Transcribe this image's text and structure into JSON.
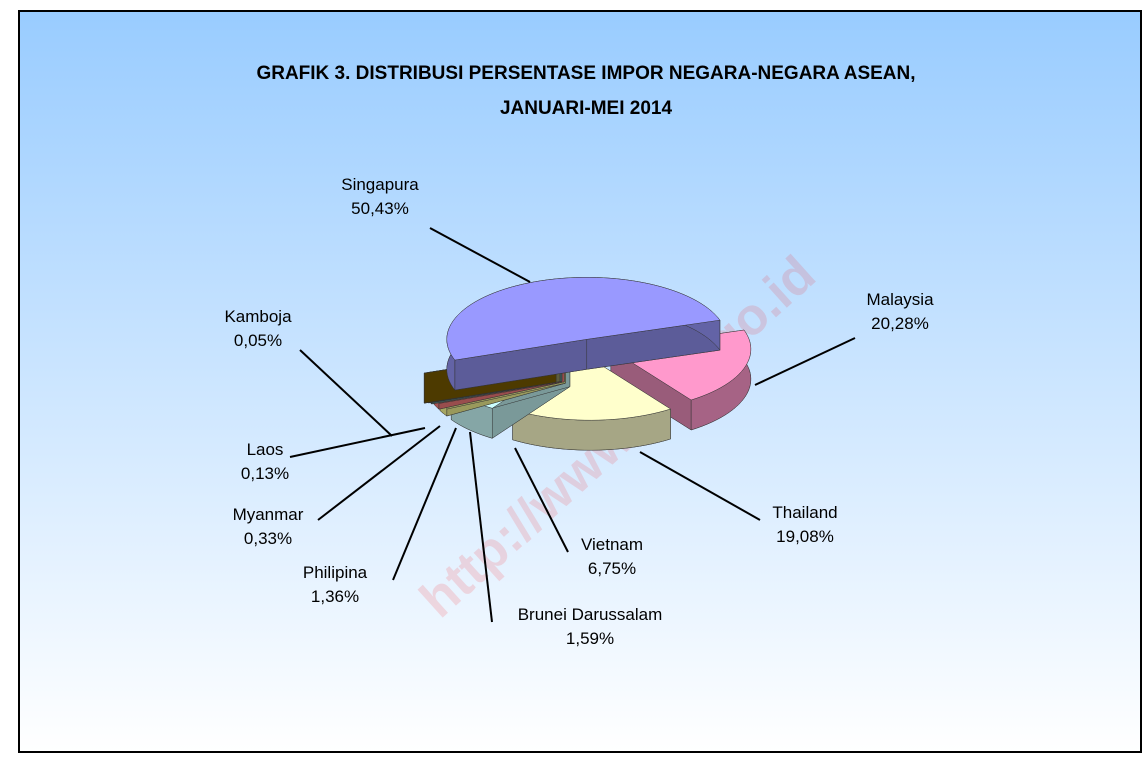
{
  "chart_data": {
    "type": "pie",
    "title": [
      "GRAFIK 3. DISTRIBUSI PERSENTASE IMPOR NEGARA-NEGARA ASEAN,",
      "JANUARI-MEI 2014"
    ],
    "watermark": "http://www.bps.go.id",
    "categories": [
      "Malaysia",
      "Thailand",
      "Vietnam",
      "Brunei Darussalam",
      "Philipina",
      "Myanmar",
      "Laos",
      "Kamboja",
      "Singapura"
    ],
    "values": [
      20.28,
      19.08,
      6.75,
      1.59,
      1.36,
      0.33,
      0.13,
      0.05,
      50.43
    ],
    "value_labels": [
      "20,28%",
      "19,08%",
      "6,75%",
      "1,59%",
      "1,36%",
      "0,33%",
      "0,13%",
      "0,05%",
      "50,43%"
    ],
    "colors": [
      "#ff99cc",
      "#ffffcc",
      "#ccffff",
      "#ffff99",
      "#ff8080",
      "#669999",
      "#999966",
      "#806000",
      "#9999ff"
    ]
  }
}
